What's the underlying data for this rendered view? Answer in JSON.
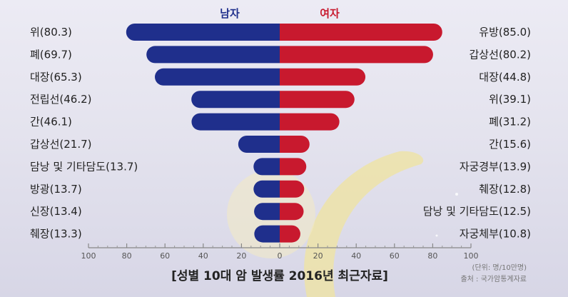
{
  "chart_data": {
    "type": "bar",
    "orientation": "horizontal-diverging",
    "title": "[성별 10대 암 발생률 2016년 최근자료]",
    "unit_note": "(단위: 명/10만명)",
    "source_note": "출처 : 국가암통계자료",
    "xlim": [
      -100,
      100
    ],
    "x_ticks": [
      {
        "value": -100,
        "label": "100"
      },
      {
        "value": -80,
        "label": "80"
      },
      {
        "value": -60,
        "label": "60"
      },
      {
        "value": -40,
        "label": "40"
      },
      {
        "value": -20,
        "label": "20"
      },
      {
        "value": 0,
        "label": "0"
      },
      {
        "value": 20,
        "label": "20"
      },
      {
        "value": 40,
        "label": "40"
      },
      {
        "value": 60,
        "label": "60"
      },
      {
        "value": 80,
        "label": "80"
      },
      {
        "value": 100,
        "label": "100"
      }
    ],
    "series": [
      {
        "name": "남자",
        "color": "#1f2f8c",
        "side": "left",
        "categories": [
          "위",
          "폐",
          "대장",
          "전립선",
          "간",
          "갑상선",
          "담낭 및 기타담도",
          "방광",
          "신장",
          "췌장"
        ],
        "values": [
          80.3,
          69.7,
          65.3,
          46.2,
          46.1,
          21.7,
          13.7,
          13.7,
          13.4,
          13.3
        ],
        "labels": [
          "위(80.3)",
          "폐(69.7)",
          "대장(65.3)",
          "전립선(46.2)",
          "간(46.1)",
          "갑상선(21.7)",
          "담낭 및 기타담도(13.7)",
          "방광(13.7)",
          "신장(13.4)",
          "췌장(13.3)"
        ]
      },
      {
        "name": "여자",
        "color": "#c8192e",
        "side": "right",
        "categories": [
          "유방",
          "갑상선",
          "대장",
          "위",
          "폐",
          "간",
          "자궁경부",
          "췌장",
          "담낭 및 기타담도",
          "자궁체부"
        ],
        "values": [
          85.0,
          80.2,
          44.8,
          39.1,
          31.2,
          15.6,
          13.9,
          12.8,
          12.5,
          10.8
        ],
        "labels": [
          "유방(85.0)",
          "갑상선(80.2)",
          "대장(44.8)",
          "위(39.1)",
          "폐(31.2)",
          "간(15.6)",
          "자궁경부(13.9)",
          "췌장(12.8)",
          "담낭 및 기타담도(12.5)",
          "자궁체부(10.8)"
        ]
      }
    ],
    "grid": false
  }
}
